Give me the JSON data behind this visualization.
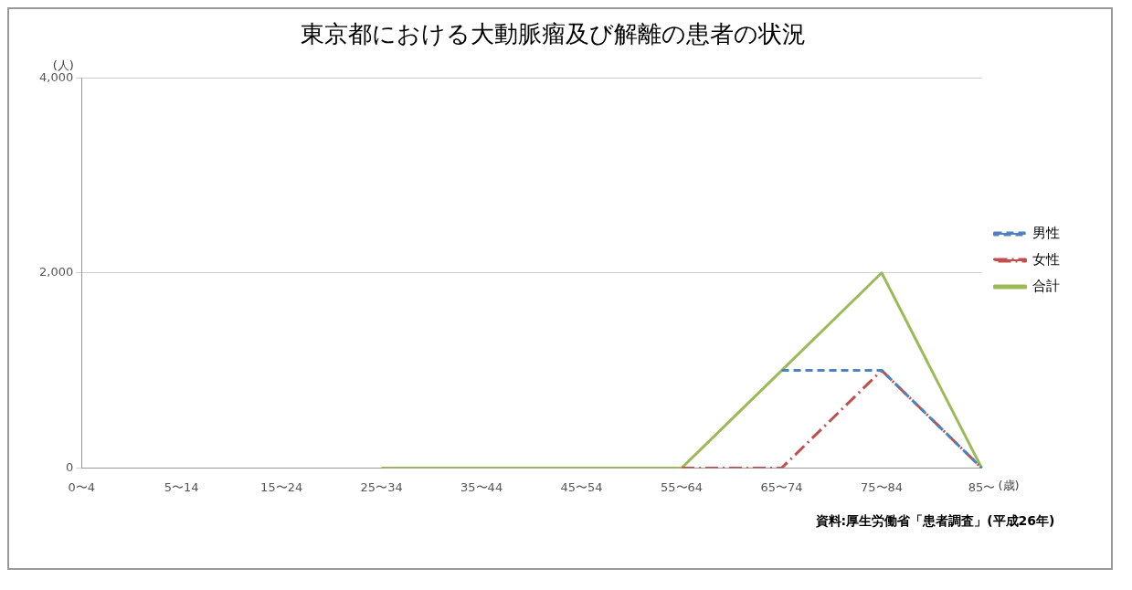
{
  "chart_data": {
    "type": "line",
    "title": "東京都における大動脈瘤及び解離の患者の状況",
    "ylabel": "(人)",
    "xlabel": "(歳)",
    "categories": [
      "0〜4",
      "5〜14",
      "15〜24",
      "25〜34",
      "35〜44",
      "45〜54",
      "55〜64",
      "65〜74",
      "75〜84",
      "85〜"
    ],
    "series": [
      {
        "name": "男性",
        "color": "#4f81bd",
        "line_style": "dashed",
        "values": [
          null,
          null,
          null,
          null,
          null,
          null,
          null,
          1000,
          1000,
          0
        ]
      },
      {
        "name": "女性",
        "color": "#c0504d",
        "line_style": "dashdot",
        "values": [
          null,
          null,
          null,
          null,
          null,
          null,
          0,
          0,
          1000,
          0
        ]
      },
      {
        "name": "合計",
        "color": "#9bbb59",
        "line_style": "solid",
        "values": [
          null,
          null,
          null,
          0,
          0,
          0,
          0,
          1000,
          2000,
          0
        ]
      }
    ],
    "ylim": [
      0,
      4000
    ],
    "yticks": [
      0,
      {
        "value": 2000,
        "label": "2,000"
      },
      {
        "value": 4000,
        "label": "4,000"
      }
    ],
    "grid": "y",
    "legend": "right",
    "marker": "none",
    "annotations": [
      "資料:厚生労働省「患者調査」(平成26年)"
    ]
  }
}
